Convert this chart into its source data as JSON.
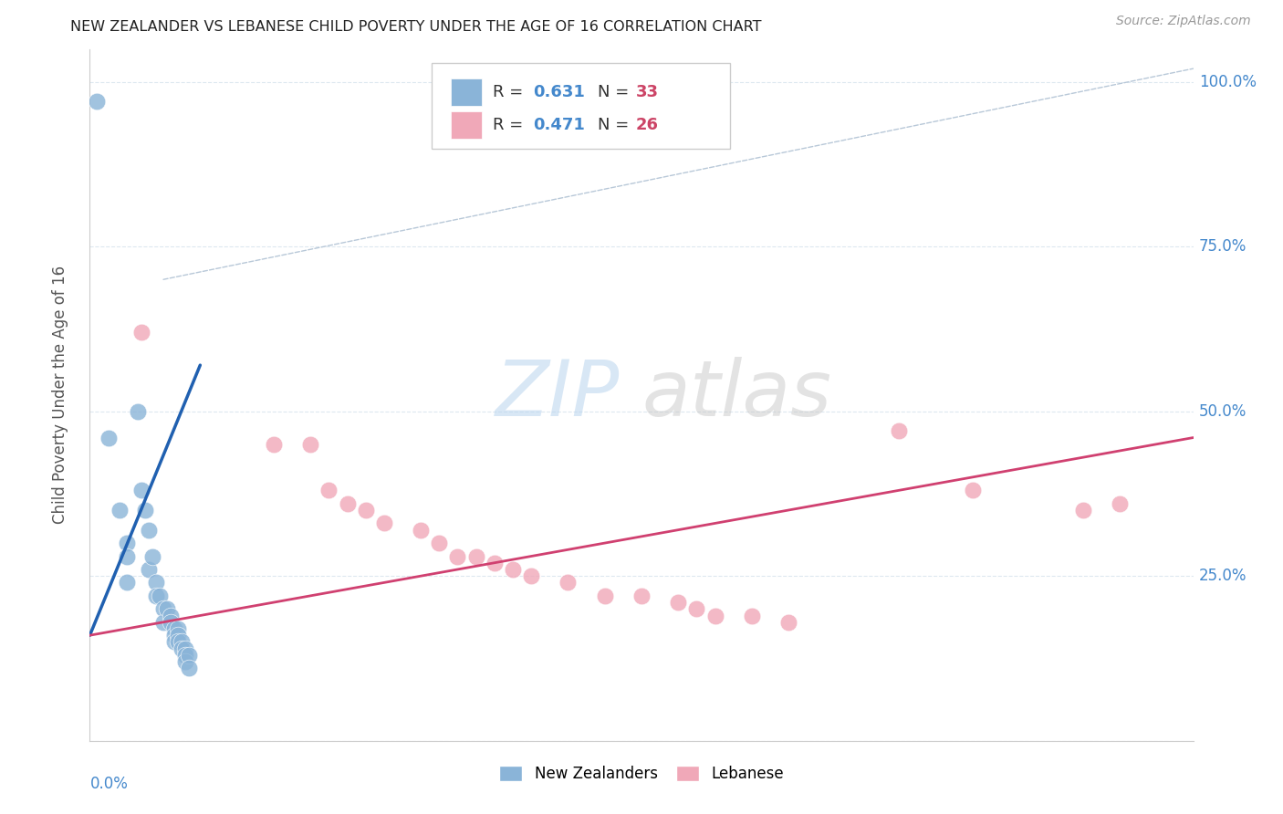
{
  "title": "NEW ZEALANDER VS LEBANESE CHILD POVERTY UNDER THE AGE OF 16 CORRELATION CHART",
  "source": "Source: ZipAtlas.com",
  "ylabel": "Child Poverty Under the Age of 16",
  "nz_color": "#8ab4d8",
  "leb_color": "#f0a8b8",
  "nz_line_color": "#2060b0",
  "leb_line_color": "#d04070",
  "ref_line_color": "#b8c8d8",
  "bg_color": "#ffffff",
  "grid_color": "#dde8f0",
  "nz_points": [
    [
      0.002,
      0.97
    ],
    [
      0.005,
      0.46
    ],
    [
      0.008,
      0.35
    ],
    [
      0.01,
      0.3
    ],
    [
      0.01,
      0.28
    ],
    [
      0.01,
      0.24
    ],
    [
      0.013,
      0.5
    ],
    [
      0.014,
      0.38
    ],
    [
      0.015,
      0.35
    ],
    [
      0.016,
      0.32
    ],
    [
      0.016,
      0.26
    ],
    [
      0.017,
      0.28
    ],
    [
      0.018,
      0.24
    ],
    [
      0.018,
      0.22
    ],
    [
      0.019,
      0.22
    ],
    [
      0.02,
      0.2
    ],
    [
      0.02,
      0.18
    ],
    [
      0.021,
      0.2
    ],
    [
      0.022,
      0.19
    ],
    [
      0.022,
      0.18
    ],
    [
      0.023,
      0.17
    ],
    [
      0.023,
      0.16
    ],
    [
      0.023,
      0.15
    ],
    [
      0.024,
      0.17
    ],
    [
      0.024,
      0.16
    ],
    [
      0.024,
      0.15
    ],
    [
      0.025,
      0.15
    ],
    [
      0.025,
      0.14
    ],
    [
      0.026,
      0.14
    ],
    [
      0.026,
      0.13
    ],
    [
      0.026,
      0.12
    ],
    [
      0.027,
      0.13
    ],
    [
      0.027,
      0.11
    ]
  ],
  "leb_points": [
    [
      0.014,
      0.62
    ],
    [
      0.05,
      0.45
    ],
    [
      0.06,
      0.45
    ],
    [
      0.065,
      0.38
    ],
    [
      0.07,
      0.36
    ],
    [
      0.075,
      0.35
    ],
    [
      0.08,
      0.33
    ],
    [
      0.09,
      0.32
    ],
    [
      0.095,
      0.3
    ],
    [
      0.1,
      0.28
    ],
    [
      0.105,
      0.28
    ],
    [
      0.11,
      0.27
    ],
    [
      0.115,
      0.26
    ],
    [
      0.12,
      0.25
    ],
    [
      0.13,
      0.24
    ],
    [
      0.14,
      0.22
    ],
    [
      0.15,
      0.22
    ],
    [
      0.16,
      0.21
    ],
    [
      0.165,
      0.2
    ],
    [
      0.17,
      0.19
    ],
    [
      0.18,
      0.19
    ],
    [
      0.19,
      0.18
    ],
    [
      0.22,
      0.47
    ],
    [
      0.24,
      0.38
    ],
    [
      0.27,
      0.35
    ],
    [
      0.28,
      0.36
    ]
  ],
  "nz_line_x": [
    0.0,
    0.03
  ],
  "nz_line_y": [
    0.16,
    0.57
  ],
  "leb_line_x": [
    0.0,
    0.3
  ],
  "leb_line_y": [
    0.16,
    0.46
  ],
  "ref_line_x": [
    0.02,
    0.3
  ],
  "ref_line_y": [
    0.7,
    1.02
  ],
  "xlim": [
    0.0,
    0.3
  ],
  "ylim": [
    0.0,
    1.05
  ],
  "ytick_vals": [
    0.0,
    0.25,
    0.5,
    0.75,
    1.0
  ],
  "ytick_labels": [
    "",
    "25.0%",
    "50.0%",
    "75.0%",
    "100.0%"
  ],
  "watermark_zip": "ZIP",
  "watermark_atlas": "atlas"
}
